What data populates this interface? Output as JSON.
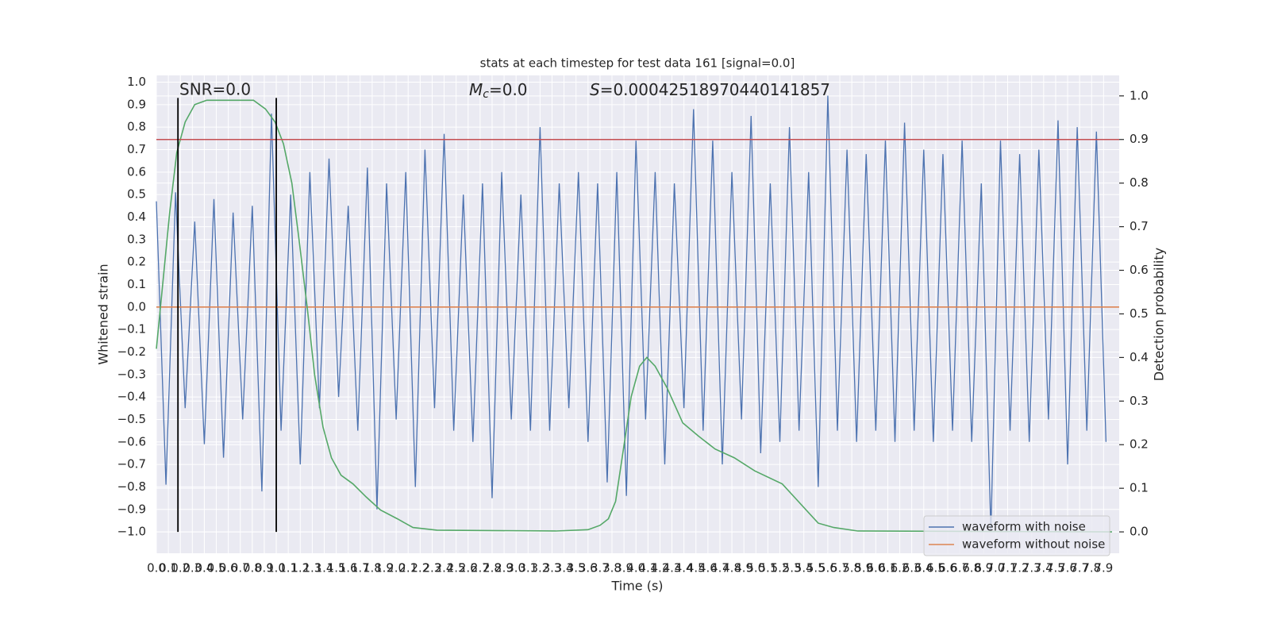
{
  "chart_data": {
    "type": "line",
    "title": "stats at each timestep for test data 161 [signal=0.0]",
    "xlabel": "Time (s)",
    "ylabel": "Whitened strain",
    "y2label": "Detection probability",
    "annotations": {
      "snr": "SNR=0.0",
      "mc_symbol": "M",
      "mc_subscript": "c",
      "mc_rest": "=0.0",
      "s_symbol": "S",
      "s_rest": "=0.00042518970440141857"
    },
    "grid": true,
    "legend": "lower right",
    "xlim": [
      0,
      8.03
    ],
    "ylim": [
      -1.095,
      1.03
    ],
    "y2lim": [
      -0.049,
      1.047
    ],
    "xticks": [
      {
        "value": 0,
        "label": "0.0"
      },
      0.1,
      0.2,
      0.3,
      0.4,
      0.5,
      0.6,
      0.7,
      0.8,
      0.9,
      {
        "value": 1,
        "label": "1.0"
      },
      1.1,
      1.2,
      1.3,
      1.4,
      1.5,
      1.6,
      1.7,
      1.8,
      1.9,
      {
        "value": 2,
        "label": "2.0"
      },
      2.1,
      2.2,
      2.3,
      2.4,
      2.5,
      2.6,
      2.7,
      2.8,
      2.9,
      {
        "value": 3,
        "label": "3.0"
      },
      3.1,
      3.2,
      3.3,
      3.4,
      3.5,
      3.6,
      3.7,
      3.8,
      3.9,
      {
        "value": 4,
        "label": "4.0"
      },
      4.1,
      4.2,
      4.3,
      4.4,
      4.5,
      4.6,
      4.7,
      4.8,
      4.9,
      {
        "value": 5,
        "label": "5.0"
      },
      5.1,
      5.2,
      5.3,
      5.4,
      5.5,
      5.6,
      5.7,
      5.8,
      5.9,
      {
        "value": 6,
        "label": "6.0"
      },
      6.1,
      6.2,
      6.3,
      6.4,
      6.5,
      6.6,
      6.7,
      6.8,
      6.9,
      {
        "value": 7,
        "label": "7.0"
      },
      7.1,
      7.2,
      7.3,
      7.4,
      7.5,
      7.6,
      7.7,
      7.8,
      7.9
    ],
    "yticks": [
      {
        "value": -1,
        "label": "−1.0"
      },
      {
        "value": -0.9,
        "label": "−0.9"
      },
      {
        "value": -0.8,
        "label": "−0.8"
      },
      {
        "value": -0.7,
        "label": "−0.7"
      },
      {
        "value": -0.6,
        "label": "−0.6"
      },
      {
        "value": -0.5,
        "label": "−0.5"
      },
      {
        "value": -0.4,
        "label": "−0.4"
      },
      {
        "value": -0.3,
        "label": "−0.3"
      },
      {
        "value": -0.2,
        "label": "−0.2"
      },
      {
        "value": -0.1,
        "label": "−0.1"
      },
      {
        "value": 0,
        "label": "0.0"
      },
      0.1,
      0.2,
      0.3,
      0.4,
      0.5,
      0.6,
      0.7,
      0.8,
      0.9,
      {
        "value": 1,
        "label": "1.0"
      }
    ],
    "y2ticks": [
      {
        "value": 0,
        "label": "0.0"
      },
      0.1,
      0.2,
      0.3,
      0.4,
      0.5,
      0.6,
      0.7,
      0.8,
      0.9,
      {
        "value": 1,
        "label": "1.0"
      }
    ],
    "threshold": 0.9,
    "threshold_color": "#c44e52",
    "vlines": [
      0.18,
      1.0
    ],
    "vline_range": [
      -1,
      0.93
    ],
    "vline_color": "#000000",
    "series": [
      {
        "name": "waveform with noise",
        "color": "#4c72b0",
        "x": [
          0,
          0.08,
          0.16,
          0.24,
          0.32,
          0.4,
          0.48,
          0.56,
          0.64,
          0.72,
          0.8,
          0.88,
          0.96,
          1.04,
          1.12,
          1.2,
          1.28,
          1.36,
          1.44,
          1.52,
          1.6,
          1.68,
          1.76,
          1.84,
          1.92,
          2,
          2.08,
          2.16,
          2.24,
          2.32,
          2.4,
          2.48,
          2.56,
          2.64,
          2.72,
          2.8,
          2.88,
          2.96,
          3.04,
          3.12,
          3.2,
          3.28,
          3.36,
          3.44,
          3.52,
          3.6,
          3.68,
          3.76,
          3.84,
          3.92,
          4,
          4.08,
          4.16,
          4.24,
          4.32,
          4.4,
          4.48,
          4.56,
          4.64,
          4.72,
          4.8,
          4.88,
          4.96,
          5.04,
          5.12,
          5.2,
          5.28,
          5.36,
          5.44,
          5.52,
          5.6,
          5.68,
          5.76,
          5.84,
          5.92,
          6,
          6.08,
          6.16,
          6.24,
          6.32,
          6.4,
          6.48,
          6.56,
          6.64,
          6.72,
          6.8,
          6.88,
          6.96,
          7.04,
          7.12,
          7.2,
          7.28,
          7.36,
          7.44,
          7.52,
          7.6,
          7.68,
          7.76,
          7.84,
          7.92
        ],
        "values": [
          0.47,
          -0.79,
          0.51,
          -0.45,
          0.38,
          -0.61,
          0.48,
          -0.67,
          0.42,
          -0.5,
          0.45,
          -0.82,
          0.86,
          -0.55,
          0.5,
          -0.7,
          0.6,
          -0.45,
          0.66,
          -0.4,
          0.45,
          -0.55,
          0.62,
          -0.9,
          0.55,
          -0.5,
          0.6,
          -0.8,
          0.7,
          -0.45,
          0.77,
          -0.55,
          0.5,
          -0.6,
          0.55,
          -0.85,
          0.6,
          -0.5,
          0.5,
          -0.55,
          0.8,
          -0.55,
          0.55,
          -0.45,
          0.6,
          -0.6,
          0.55,
          -0.78,
          0.6,
          -0.84,
          0.74,
          -0.5,
          0.6,
          -0.7,
          0.55,
          -0.45,
          0.88,
          -0.55,
          0.74,
          -0.7,
          0.6,
          -0.5,
          0.85,
          -0.65,
          0.55,
          -0.6,
          0.8,
          -0.55,
          0.6,
          -0.8,
          0.94,
          -0.55,
          0.7,
          -0.6,
          0.68,
          -0.55,
          0.74,
          -0.6,
          0.82,
          -0.55,
          0.7,
          -0.6,
          0.68,
          -0.55,
          0.74,
          -0.6,
          0.55,
          -1.0,
          0.74,
          -0.55,
          0.68,
          -0.6,
          0.7,
          -0.5,
          0.83,
          -0.7,
          0.8,
          -0.55,
          0.78,
          -0.6
        ]
      },
      {
        "name": "waveform without noise",
        "color": "#dd8452",
        "x": [
          0,
          8.03
        ],
        "values": [
          0,
          0
        ]
      },
      {
        "color": "#55a868",
        "axis": "y2",
        "x": [
          0,
          0.05,
          0.11,
          0.17,
          0.24,
          0.32,
          0.42,
          0.62,
          0.81,
          0.91,
          0.99,
          1.06,
          1.13,
          1.19,
          1.26,
          1.32,
          1.39,
          1.46,
          1.54,
          1.64,
          1.75,
          1.87,
          2.01,
          2.14,
          2.34,
          3.33,
          3.6,
          3.7,
          3.77,
          3.83,
          3.89,
          3.96,
          4.03,
          4.09,
          4.16,
          4.26,
          4.39,
          4.52,
          4.66,
          4.82,
          4.99,
          5.22,
          5.32,
          5.42,
          5.52,
          5.65,
          5.85,
          7.97
        ],
        "values": [
          0.42,
          0.56,
          0.73,
          0.87,
          0.94,
          0.98,
          0.99,
          0.99,
          0.99,
          0.97,
          0.94,
          0.89,
          0.8,
          0.67,
          0.51,
          0.36,
          0.24,
          0.17,
          0.13,
          0.11,
          0.08,
          0.05,
          0.03,
          0.01,
          0.004,
          0.002,
          0.005,
          0.015,
          0.03,
          0.07,
          0.18,
          0.31,
          0.38,
          0.4,
          0.38,
          0.33,
          0.25,
          0.22,
          0.19,
          0.17,
          0.14,
          0.11,
          0.08,
          0.05,
          0.02,
          0.01,
          0.002,
          0
        ]
      }
    ]
  }
}
